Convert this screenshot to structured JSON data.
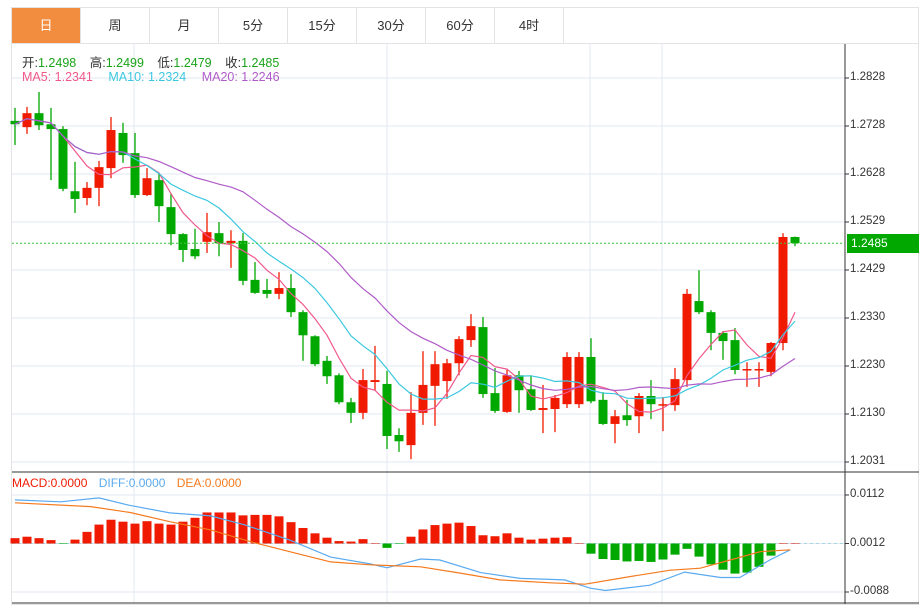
{
  "tabs": [
    "日",
    "周",
    "月",
    "5分",
    "15分",
    "30分",
    "60分",
    "4时"
  ],
  "active_tab": 0,
  "ohlc_legend": {
    "open_label": "开:",
    "open": "1.2498",
    "high_label": "高:",
    "high": "1.2499",
    "low_label": "低:",
    "low": "1.2479",
    "close_label": "收:",
    "close": "1.2485"
  },
  "ma_legend": {
    "ma5": "MA5: 1.2341",
    "ma10": "MA10: 1.2324",
    "ma20": "MA20: 1.2246"
  },
  "macd_legend": {
    "macd": "MACD:0.0000",
    "diff": "DIFF:0.0000",
    "dea": "DEA:0.0000"
  },
  "colors": {
    "up": "#f01a00",
    "down": "#00a800",
    "ma5": "#f0588a",
    "ma10": "#3cc8e0",
    "ma20": "#b05cc8",
    "diff": "#5aaaf0",
    "dea": "#f57a1e",
    "tab_active": "#f28c3e"
  },
  "current_price": "1.2485",
  "chart_data": {
    "type": "candlestick",
    "price_axis": {
      "ticks": [
        "1.2828",
        "1.2728",
        "1.2628",
        "1.2529",
        "1.2429",
        "1.2330",
        "1.2230",
        "1.2130",
        "1.2031"
      ],
      "range": [
        1.2031,
        1.2828
      ]
    },
    "candles_ohlc": [
      [
        1.2739,
        1.2766,
        1.2689,
        1.2732
      ],
      [
        1.2726,
        1.2768,
        1.2712,
        1.2755
      ],
      [
        1.2755,
        1.2799,
        1.272,
        1.273
      ],
      [
        1.2732,
        1.2766,
        1.2616,
        1.2722
      ],
      [
        1.2722,
        1.2728,
        1.2593,
        1.2598
      ],
      [
        1.2593,
        1.2654,
        1.2548,
        1.2577
      ],
      [
        1.2579,
        1.2612,
        1.2564,
        1.26
      ],
      [
        1.26,
        1.2656,
        1.2562,
        1.2643
      ],
      [
        1.2641,
        1.2747,
        1.262,
        1.272
      ],
      [
        1.2714,
        1.2735,
        1.2652,
        1.2668
      ],
      [
        1.2672,
        1.2714,
        1.2579,
        1.2585
      ],
      [
        1.2585,
        1.2641,
        1.2583,
        1.262
      ],
      [
        1.2616,
        1.2631,
        1.2529,
        1.2562
      ],
      [
        1.256,
        1.2589,
        1.2481,
        1.2504
      ],
      [
        1.2504,
        1.2506,
        1.2446,
        1.2471
      ],
      [
        1.2473,
        1.2515,
        1.2452,
        1.2458
      ],
      [
        1.2488,
        1.2548,
        1.2465,
        1.2508
      ],
      [
        1.2506,
        1.2529,
        1.2458,
        1.2485
      ],
      [
        1.2485,
        1.2512,
        1.2434,
        1.249
      ],
      [
        1.249,
        1.2506,
        1.2398,
        1.2407
      ],
      [
        1.2409,
        1.2446,
        1.238,
        1.2382
      ],
      [
        1.2388,
        1.2411,
        1.2371,
        1.238
      ],
      [
        1.238,
        1.2425,
        1.2369,
        1.2392
      ],
      [
        1.2392,
        1.2421,
        1.2332,
        1.2342
      ],
      [
        1.2342,
        1.2346,
        1.2241,
        1.2294
      ],
      [
        1.2292,
        1.2294,
        1.223,
        1.2234
      ],
      [
        1.2241,
        1.2251,
        1.2193,
        1.2209
      ],
      [
        1.2211,
        1.2215,
        1.2151,
        1.2155
      ],
      [
        1.2155,
        1.2164,
        1.2112,
        1.2133
      ],
      [
        1.2133,
        1.2224,
        1.212,
        1.2201
      ],
      [
        1.2197,
        1.2272,
        1.218,
        1.2201
      ],
      [
        1.2193,
        1.222,
        1.2058,
        1.2085
      ],
      [
        1.2087,
        1.2101,
        1.2052,
        1.2074
      ],
      [
        1.2066,
        1.2176,
        1.2037,
        1.2133
      ],
      [
        1.2133,
        1.2261,
        1.2108,
        1.2191
      ],
      [
        1.2189,
        1.2261,
        1.2106,
        1.2234
      ],
      [
        1.2199,
        1.2245,
        1.2162,
        1.2236
      ],
      [
        1.2236,
        1.2292,
        1.2211,
        1.2286
      ],
      [
        1.2284,
        1.2338,
        1.227,
        1.2313
      ],
      [
        1.2311,
        1.2332,
        1.2164,
        1.2172
      ],
      [
        1.2174,
        1.2226,
        1.2133,
        1.2137
      ],
      [
        1.2135,
        1.2222,
        1.2133,
        1.2211
      ],
      [
        1.2211,
        1.222,
        1.2133,
        1.218
      ],
      [
        1.2182,
        1.2211,
        1.2137,
        1.2139
      ],
      [
        1.2139,
        1.2191,
        1.2091,
        1.2143
      ],
      [
        1.2141,
        1.217,
        1.2093,
        1.2164
      ],
      [
        1.2151,
        1.2259,
        1.2143,
        1.2249
      ],
      [
        1.2151,
        1.2259,
        1.2143,
        1.2249
      ],
      [
        1.2249,
        1.2288,
        1.2153,
        1.2157
      ],
      [
        1.216,
        1.2176,
        1.2108,
        1.211
      ],
      [
        1.211,
        1.2139,
        1.207,
        1.2126
      ],
      [
        1.2128,
        1.216,
        1.2106,
        1.2118
      ],
      [
        1.2126,
        1.2174,
        1.2091,
        1.2168
      ],
      [
        1.2168,
        1.2201,
        1.212,
        1.2151
      ],
      [
        1.2149,
        1.2166,
        1.2095,
        1.2151
      ],
      [
        1.2149,
        1.2226,
        1.2137,
        1.2203
      ],
      [
        1.2201,
        1.239,
        1.2187,
        1.238
      ],
      [
        1.2365,
        1.2429,
        1.2338,
        1.2342
      ],
      [
        1.2342,
        1.2346,
        1.2263,
        1.2299
      ],
      [
        1.2299,
        1.2303,
        1.2243,
        1.2282
      ],
      [
        1.2284,
        1.2309,
        1.2213,
        1.2222
      ],
      [
        1.2222,
        1.2238,
        1.2187,
        1.2224
      ],
      [
        1.2222,
        1.2238,
        1.2187,
        1.2224
      ],
      [
        1.2218,
        1.228,
        1.2209,
        1.2278
      ],
      [
        1.2278,
        1.2506,
        1.2263,
        1.2498
      ],
      [
        1.2498,
        1.2499,
        1.2479,
        1.2485
      ]
    ],
    "macd_axis": {
      "ticks": [
        "0.0112",
        "0.0012",
        "-0.0088"
      ],
      "range": [
        -0.0088,
        0.0112
      ]
    },
    "macd_hist": [
      0.0011,
      0.0014,
      0.0011,
      0.0007,
      -0.0001,
      0.0008,
      0.0024,
      0.0039,
      0.0049,
      0.0045,
      0.0041,
      0.0046,
      0.0041,
      0.0039,
      0.0045,
      0.0053,
      0.0064,
      0.0064,
      0.0064,
      0.0058,
      0.0059,
      0.0059,
      0.0056,
      0.0044,
      0.0032,
      0.0021,
      0.0012,
      0.0005,
      0.0004,
      0.0009,
      0.0001,
      -0.0009,
      -0.0001,
      0.0014,
      0.0029,
      0.0038,
      0.0041,
      0.0043,
      0.0036,
      0.0017,
      0.0015,
      0.0021,
      0.0012,
      0.0008,
      0.001,
      0.0012,
      0.0013,
      0.0,
      -0.0021,
      -0.0032,
      -0.0034,
      -0.0037,
      -0.0036,
      -0.0038,
      -0.0033,
      -0.0023,
      -0.0011,
      -0.0027,
      -0.0043,
      -0.0054,
      -0.0062,
      -0.006,
      -0.0048,
      -0.0025,
      0.0,
      0.0
    ],
    "diff_line": [
      [
        0,
        0.0102
      ],
      [
        3.8,
        0.0098
      ],
      [
        7,
        0.0106
      ],
      [
        9.5,
        0.0091
      ],
      [
        12.9,
        0.0075
      ],
      [
        16.3,
        0.0069
      ],
      [
        19.2,
        0.005
      ],
      [
        22.9,
        0.0019
      ],
      [
        26.3,
        -0.0016
      ],
      [
        29.6,
        -0.003
      ],
      [
        31,
        -0.0038
      ],
      [
        33.8,
        -0.002
      ],
      [
        35.4,
        -0.0022
      ],
      [
        38.8,
        -0.0048
      ],
      [
        42.1,
        -0.006
      ],
      [
        45.8,
        -0.0063
      ],
      [
        47.9,
        -0.008
      ],
      [
        49.2,
        -0.0085
      ],
      [
        52.9,
        -0.0074
      ],
      [
        55.8,
        -0.0047
      ],
      [
        58.8,
        -0.0058
      ],
      [
        60.4,
        -0.0058
      ],
      [
        62.9,
        -0.0022
      ],
      [
        64.6,
        -0.0001
      ]
    ],
    "dea_line": [
      [
        0,
        0.0096
      ],
      [
        6.3,
        0.0088
      ],
      [
        9.6,
        0.0076
      ],
      [
        12.9,
        0.0057
      ],
      [
        16.3,
        0.004
      ],
      [
        19.6,
        0.0016
      ],
      [
        22.9,
        -0.0005
      ],
      [
        26.3,
        -0.0026
      ],
      [
        29.6,
        -0.0032
      ],
      [
        33.8,
        -0.0036
      ],
      [
        37.1,
        -0.0049
      ],
      [
        40.4,
        -0.0063
      ],
      [
        44.6,
        -0.0069
      ],
      [
        47.5,
        -0.0072
      ],
      [
        51.3,
        -0.0056
      ],
      [
        54.6,
        -0.0043
      ],
      [
        57.1,
        -0.0039
      ],
      [
        59.6,
        -0.0022
      ],
      [
        62.1,
        -0.0005
      ],
      [
        64.6,
        -0.0001
      ]
    ]
  }
}
